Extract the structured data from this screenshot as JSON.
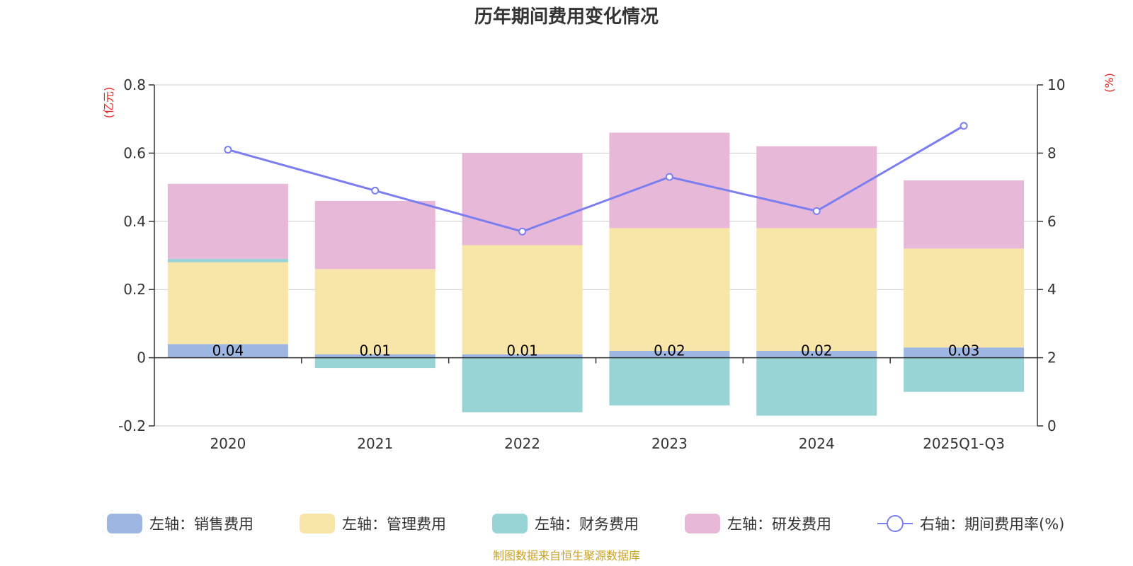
{
  "chart_data": {
    "type": "bar",
    "stacked": true,
    "title": "历年期间费用变化情况",
    "categories": [
      "2020",
      "2021",
      "2022",
      "2023",
      "2024",
      "2025Q1-Q3"
    ],
    "left_axis": {
      "unit": "(亿元)",
      "ylim": [
        -0.2,
        0.8
      ],
      "ticks": [
        "-0.2",
        "0",
        "0.2",
        "0.4",
        "0.6",
        "0.8"
      ],
      "tick_values": [
        -0.2,
        0,
        0.2,
        0.4,
        0.6,
        0.8
      ]
    },
    "right_axis": {
      "unit": "(%)",
      "ylim": [
        0,
        10
      ],
      "ticks": [
        "0",
        "2",
        "4",
        "6",
        "8",
        "10"
      ],
      "tick_values": [
        0,
        2,
        4,
        6,
        8,
        10
      ]
    },
    "series": [
      {
        "name": "左轴：销售费用",
        "axis": "left",
        "color": "#9db6e2",
        "values": [
          0.04,
          0.01,
          0.01,
          0.02,
          0.02,
          0.03
        ],
        "labels": [
          "0.04",
          "0.01",
          "0.01",
          "0.02",
          "0.02",
          "0.03"
        ]
      },
      {
        "name": "左轴：管理费用",
        "axis": "left",
        "color": "#f7e6a8",
        "values": [
          0.24,
          0.25,
          0.32,
          0.36,
          0.36,
          0.29
        ]
      },
      {
        "name": "左轴：财务费用",
        "axis": "left",
        "color": "#98d4d6",
        "values": [
          0.01,
          -0.03,
          -0.16,
          -0.14,
          -0.17,
          -0.1
        ]
      },
      {
        "name": "左轴：研发费用",
        "axis": "left",
        "color": "#e7b8d8",
        "values": [
          0.22,
          0.2,
          0.27,
          0.28,
          0.24,
          0.2
        ]
      },
      {
        "name": "右轴：期间费用率(%)",
        "axis": "right",
        "type": "line",
        "color": "#7b7ef0",
        "values": [
          8.1,
          6.9,
          5.7,
          7.3,
          6.3,
          8.8
        ]
      }
    ],
    "legend_position": "bottom",
    "grid": true
  },
  "source_note": "制图数据来自恒生聚源数据库",
  "colors": {
    "axis_unit": "#e8231d",
    "source": "#c9a227",
    "grid": "#cccccc",
    "axis": "#333333"
  }
}
